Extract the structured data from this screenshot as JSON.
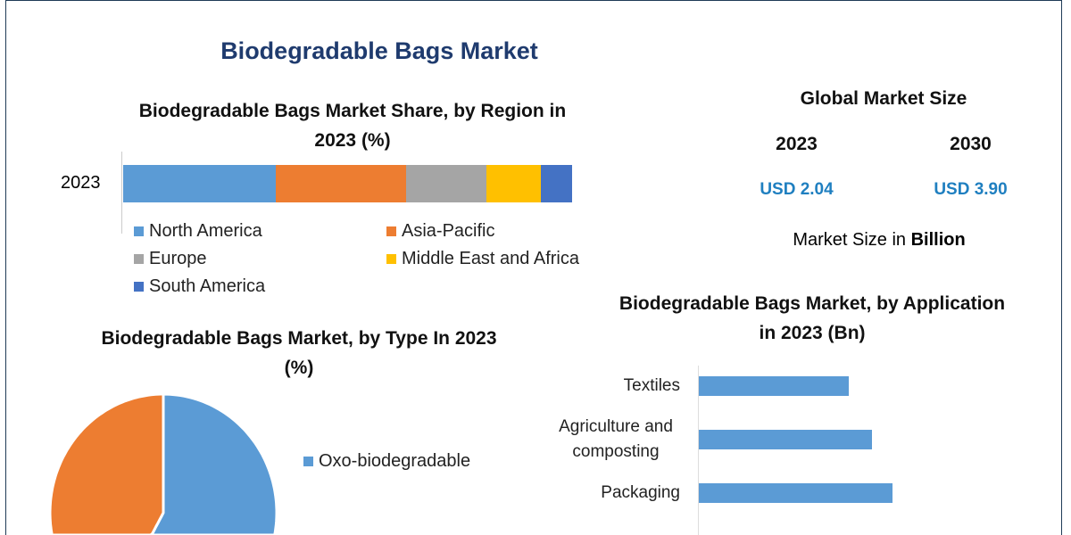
{
  "title": "Biodegradable Bags Market",
  "chart_data": [
    {
      "type": "bar",
      "stacked": true,
      "orientation": "horizontal",
      "title": "Biodegradable Bags Market Share, by Region in 2023 (%)",
      "categories": [
        "2023"
      ],
      "series": [
        {
          "name": "North America",
          "values": [
            34
          ],
          "color": "#5b9bd5"
        },
        {
          "name": "Asia-Pacific",
          "values": [
            29
          ],
          "color": "#ed7d31"
        },
        {
          "name": "Europe",
          "values": [
            18
          ],
          "color": "#a5a5a5"
        },
        {
          "name": "Middle East and Africa",
          "values": [
            12
          ],
          "color": "#ffc000"
        },
        {
          "name": "South America",
          "values": [
            7
          ],
          "color": "#4472c4"
        }
      ],
      "legend": "bottom"
    },
    {
      "type": "pie",
      "title": "Biodegradable Bags Market, by Type In 2023 (%)",
      "slices": [
        {
          "name": "Oxo-biodegradable",
          "value": 58,
          "color": "#5b9bd5"
        },
        {
          "value": 42,
          "color": "#ed7d31"
        }
      ],
      "legend": "right"
    },
    {
      "type": "bar",
      "orientation": "horizontal",
      "title": "Biodegradable Bags Market, by Application in 2023 (Bn)",
      "categories": [
        "Textiles",
        "Agriculture and composting",
        "Packaging"
      ],
      "values": [
        0.52,
        0.6,
        0.67
      ],
      "color": "#5b9bd5"
    }
  ],
  "market": {
    "title": "Global Market Size",
    "years": [
      "2023",
      "2030"
    ],
    "values": [
      "USD 2.04",
      "USD 3.90"
    ],
    "note_prefix": "Market Size in ",
    "note_bold": "Billion"
  }
}
